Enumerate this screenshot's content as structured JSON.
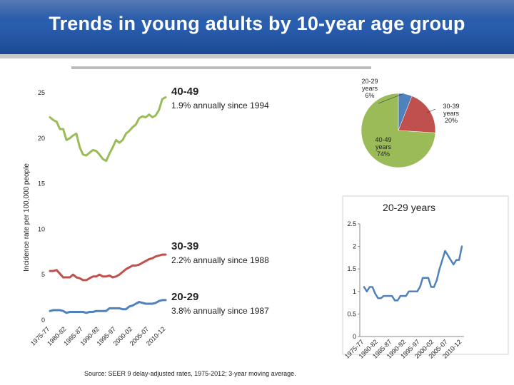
{
  "title": "Trends in young adults by 10-year age group",
  "source": "Source: SEER 9 delay-adjusted rates, 1975-2012; 3-year moving average.",
  "annotations": [
    {
      "id": "a40",
      "label": "40-49",
      "sub": "1.9% annually since 1994"
    },
    {
      "id": "a30",
      "label": "30-39",
      "sub": "2.2% annually since 1988"
    },
    {
      "id": "a20",
      "label": "20-29",
      "sub": "3.8% annually since 1987"
    }
  ],
  "colors": {
    "blue": "#4f81bd",
    "red": "#c0504d",
    "green": "#9bbb59"
  },
  "chart_data": [
    {
      "type": "line",
      "title": "",
      "xlabel": "",
      "ylabel": "Incidence rate per 100,000 people",
      "ylim": [
        0,
        25
      ],
      "yticks": [
        0,
        5,
        10,
        15,
        20,
        25
      ],
      "xlim": [
        1976,
        2011
      ],
      "xtick_values": [
        1976,
        1981,
        1986,
        1991,
        1996,
        2001,
        2006,
        2011
      ],
      "xtick_labels": [
        "1975-77",
        "1980-82",
        "1985-87",
        "1990-92",
        "1995-97",
        "2000-02",
        "2005-07",
        "2010-12"
      ],
      "x": [
        1976,
        1977,
        1978,
        1979,
        1980,
        1981,
        1982,
        1983,
        1984,
        1985,
        1986,
        1987,
        1988,
        1989,
        1990,
        1991,
        1992,
        1993,
        1994,
        1995,
        1996,
        1997,
        1998,
        1999,
        2000,
        2001,
        2002,
        2003,
        2004,
        2005,
        2006,
        2007,
        2008,
        2009,
        2010,
        2011
      ],
      "series": [
        {
          "name": "40-49",
          "color": "#9bbb59",
          "values": [
            22.3,
            22.0,
            21.8,
            21.0,
            21.0,
            19.8,
            20.0,
            20.3,
            20.5,
            19.0,
            18.2,
            18.1,
            18.4,
            18.7,
            18.6,
            18.2,
            17.7,
            17.5,
            18.3,
            19.0,
            19.8,
            19.5,
            19.8,
            20.5,
            20.8,
            21.2,
            21.5,
            22.2,
            22.4,
            22.3,
            22.6,
            22.3,
            22.5,
            23.1,
            24.3,
            24.5
          ]
        },
        {
          "name": "30-39",
          "color": "#c0504d",
          "values": [
            5.4,
            5.4,
            5.5,
            5.1,
            4.7,
            4.7,
            4.7,
            5.0,
            4.7,
            4.6,
            4.4,
            4.4,
            4.6,
            4.8,
            4.8,
            5.0,
            4.8,
            4.8,
            4.9,
            4.7,
            4.8,
            5.0,
            5.3,
            5.6,
            5.8,
            6.0,
            6.0,
            6.1,
            6.3,
            6.5,
            6.7,
            6.8,
            7.0,
            7.1,
            7.2,
            7.2
          ]
        },
        {
          "name": "20-29",
          "color": "#4f81bd",
          "values": [
            1.0,
            1.1,
            1.1,
            1.1,
            1.0,
            0.8,
            0.9,
            0.9,
            0.9,
            0.9,
            0.9,
            0.8,
            0.9,
            0.9,
            1.0,
            1.0,
            1.0,
            1.0,
            1.3,
            1.3,
            1.3,
            1.3,
            1.2,
            1.2,
            1.5,
            1.6,
            1.8,
            2.0,
            1.9,
            1.8,
            1.8,
            1.8,
            1.9,
            2.1,
            2.2,
            2.2
          ]
        }
      ]
    },
    {
      "type": "pie",
      "title": "",
      "slices": [
        {
          "label": "20-29 years",
          "value": 6,
          "pct": "6%",
          "color": "#4f81bd"
        },
        {
          "label": "30-39 years",
          "value": 20,
          "pct": "20%",
          "color": "#c0504d"
        },
        {
          "label": "40-49 years",
          "value": 74,
          "pct": "74%",
          "color": "#9bbb59"
        }
      ]
    },
    {
      "type": "line",
      "title": "20-29 years",
      "ylim": [
        0,
        2.5
      ],
      "yticks": [
        0,
        0.5,
        1,
        1.5,
        2,
        2.5
      ],
      "xlim": [
        1976,
        2011
      ],
      "xtick_values": [
        1976,
        1981,
        1986,
        1991,
        1996,
        2001,
        2006,
        2011
      ],
      "xtick_labels": [
        "1975-77",
        "1980-82",
        "1985-87",
        "1990-92",
        "1995-97",
        "2000-02",
        "2005-07",
        "2010-12"
      ],
      "x": [
        1976,
        1977,
        1978,
        1979,
        1980,
        1981,
        1982,
        1983,
        1984,
        1985,
        1986,
        1987,
        1988,
        1989,
        1990,
        1991,
        1992,
        1993,
        1994,
        1995,
        1996,
        1997,
        1998,
        1999,
        2000,
        2001,
        2002,
        2003,
        2004,
        2005,
        2006,
        2007,
        2008,
        2009,
        2010,
        2011
      ],
      "series": [
        {
          "name": "20-29",
          "color": "#4f81bd",
          "values": [
            1.1,
            1.0,
            1.1,
            1.1,
            0.95,
            0.85,
            0.85,
            0.9,
            0.9,
            0.9,
            0.9,
            0.8,
            0.8,
            0.9,
            0.9,
            0.9,
            1.0,
            1.0,
            1.0,
            1.0,
            1.1,
            1.3,
            1.3,
            1.3,
            1.1,
            1.1,
            1.25,
            1.5,
            1.7,
            1.9,
            1.8,
            1.7,
            1.6,
            1.7,
            1.7,
            2.0
          ]
        }
      ]
    }
  ]
}
